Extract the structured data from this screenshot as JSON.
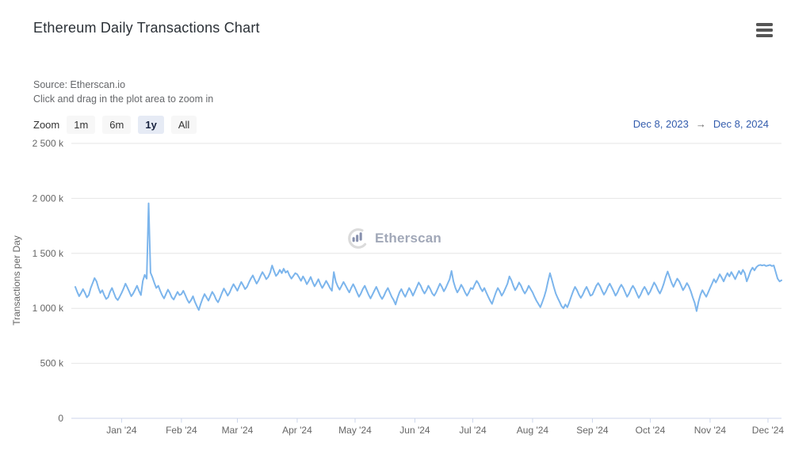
{
  "header": {
    "title": "Ethereum Daily Transactions Chart"
  },
  "subheader": {
    "source_line": "Source: Etherscan.io",
    "hint_line": "Click and drag in the plot area to zoom in"
  },
  "range_selector": {
    "zoom_label": "Zoom",
    "buttons": [
      {
        "label": "1m",
        "selected": false
      },
      {
        "label": "6m",
        "selected": false
      },
      {
        "label": "1y",
        "selected": true
      },
      {
        "label": "All",
        "selected": false
      }
    ],
    "from_date": "Dec 8, 2023",
    "arrow": "→",
    "to_date": "Dec 8, 2024"
  },
  "watermark": {
    "text": "Etherscan"
  },
  "colors": {
    "series_line": "#7cb5ec",
    "gridline": "#e6e6e6",
    "axis_line": "#ccd6eb",
    "axis_text": "#666666",
    "selected_button_bg": "#e6ebf5",
    "button_bg": "#f7f7f7",
    "range_date_text": "#335cad"
  },
  "chart_data": {
    "type": "line",
    "title": "Ethereum Daily Transactions Chart",
    "xlabel": "",
    "ylabel": "Transactions per Day",
    "legend": "none",
    "grid": "horizontal",
    "ylim_k": [
      0,
      2500
    ],
    "y_ticks_k": [
      0,
      500,
      1000,
      1500,
      2000,
      2500
    ],
    "y_tick_labels": [
      "0",
      "500 k",
      "1 000 k",
      "1 500 k",
      "2 000 k",
      "2 500 k"
    ],
    "x_range": {
      "start": "Dec 8, 2023",
      "end": "Dec 8, 2024",
      "days": 366
    },
    "x_months": [
      {
        "label": "Jan '24",
        "day_index": 24
      },
      {
        "label": "Feb '24",
        "day_index": 55
      },
      {
        "label": "Mar '24",
        "day_index": 84
      },
      {
        "label": "Apr '24",
        "day_index": 115
      },
      {
        "label": "May '24",
        "day_index": 145
      },
      {
        "label": "Jun '24",
        "day_index": 176
      },
      {
        "label": "Jul '24",
        "day_index": 206
      },
      {
        "label": "Aug '24",
        "day_index": 237
      },
      {
        "label": "Sep '24",
        "day_index": 268
      },
      {
        "label": "Oct '24",
        "day_index": 298
      },
      {
        "label": "Nov '24",
        "day_index": 329
      },
      {
        "label": "Dec '24",
        "day_index": 359
      }
    ],
    "series": [
      {
        "name": "Transactions per Day",
        "unit": "thousands of transactions (k)",
        "color": "#7cb5ec",
        "daily_values_k": [
          1195,
          1150,
          1110,
          1140,
          1175,
          1140,
          1100,
          1120,
          1185,
          1230,
          1275,
          1245,
          1185,
          1140,
          1165,
          1120,
          1085,
          1100,
          1150,
          1185,
          1140,
          1095,
          1075,
          1105,
          1140,
          1180,
          1225,
          1190,
          1150,
          1110,
          1135,
          1170,
          1205,
          1160,
          1120,
          1250,
          1305,
          1270,
          1955,
          1325,
          1280,
          1230,
          1185,
          1205,
          1160,
          1120,
          1090,
          1130,
          1170,
          1140,
          1100,
          1080,
          1115,
          1150,
          1120,
          1130,
          1160,
          1120,
          1080,
          1050,
          1075,
          1110,
          1060,
          1020,
          985,
          1040,
          1090,
          1130,
          1100,
          1070,
          1110,
          1150,
          1120,
          1080,
          1055,
          1095,
          1140,
          1180,
          1150,
          1115,
          1145,
          1185,
          1220,
          1190,
          1160,
          1200,
          1240,
          1210,
          1175,
          1195,
          1235,
          1270,
          1300,
          1260,
          1225,
          1255,
          1295,
          1330,
          1300,
          1265,
          1285,
          1325,
          1390,
          1340,
          1295,
          1315,
          1350,
          1320,
          1360,
          1325,
          1340,
          1300,
          1270,
          1295,
          1320,
          1310,
          1280,
          1250,
          1290,
          1260,
          1220,
          1250,
          1285,
          1240,
          1200,
          1230,
          1265,
          1220,
          1185,
          1215,
          1250,
          1220,
          1185,
          1160,
          1330,
          1245,
          1200,
          1170,
          1205,
          1240,
          1210,
          1175,
          1145,
          1185,
          1220,
          1185,
          1145,
          1105,
          1135,
          1175,
          1205,
          1165,
          1125,
          1090,
          1125,
          1160,
          1195,
          1155,
          1115,
          1085,
          1115,
          1155,
          1185,
          1145,
          1105,
          1075,
          1035,
          1095,
          1145,
          1175,
          1135,
          1105,
          1145,
          1185,
          1155,
          1115,
          1155,
          1195,
          1235,
          1205,
          1165,
          1135,
          1165,
          1205,
          1175,
          1135,
          1115,
          1145,
          1185,
          1225,
          1195,
          1155,
          1185,
          1225,
          1265,
          1340,
          1245,
          1185,
          1145,
          1175,
          1215,
          1185,
          1145,
          1115,
          1145,
          1185,
          1175,
          1215,
          1250,
          1225,
          1185,
          1155,
          1185,
          1145,
          1105,
          1070,
          1040,
          1095,
          1145,
          1185,
          1155,
          1115,
          1145,
          1185,
          1225,
          1290,
          1255,
          1205,
          1165,
          1195,
          1235,
          1205,
          1165,
          1135,
          1165,
          1205,
          1175,
          1145,
          1105,
          1070,
          1040,
          1010,
          1055,
          1105,
          1165,
          1245,
          1320,
          1260,
          1195,
          1135,
          1095,
          1060,
          1020,
          1000,
          1035,
          1010,
          1055,
          1105,
          1155,
          1195,
          1165,
          1125,
          1095,
          1125,
          1165,
          1195,
          1155,
          1115,
          1125,
          1165,
          1205,
          1230,
          1200,
          1160,
          1125,
          1155,
          1195,
          1225,
          1190,
          1155,
          1115,
          1145,
          1185,
          1215,
          1185,
          1145,
          1105,
          1135,
          1175,
          1205,
          1175,
          1135,
          1095,
          1125,
          1165,
          1195,
          1165,
          1125,
          1155,
          1195,
          1235,
          1205,
          1165,
          1135,
          1175,
          1225,
          1285,
          1335,
          1285,
          1235,
          1195,
          1235,
          1270,
          1245,
          1205,
          1165,
          1195,
          1230,
          1200,
          1155,
          1100,
          1050,
          975,
          1060,
          1125,
          1165,
          1135,
          1105,
          1145,
          1185,
          1225,
          1265,
          1235,
          1270,
          1310,
          1280,
          1245,
          1285,
          1320,
          1290,
          1330,
          1300,
          1265,
          1305,
          1340,
          1310,
          1350,
          1320,
          1245,
          1290,
          1340,
          1370,
          1345,
          1375,
          1390,
          1395,
          1390,
          1395,
          1385,
          1390,
          1395,
          1385,
          1390,
          1330,
          1270,
          1245,
          1255
        ]
      }
    ]
  }
}
